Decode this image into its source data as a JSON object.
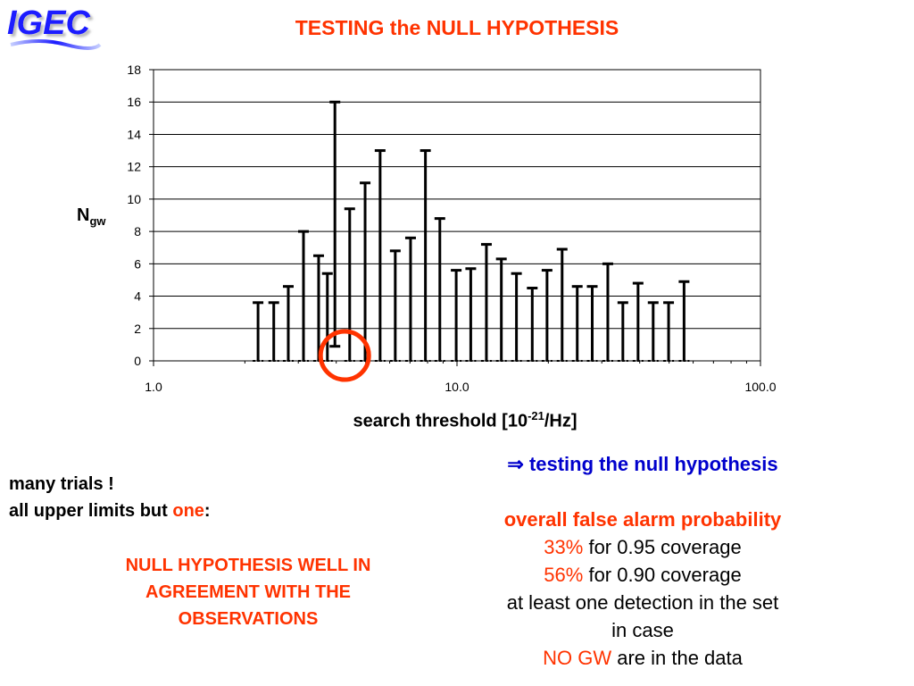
{
  "logo": {
    "text": "IGEC",
    "color": "#1a1aff"
  },
  "title": "TESTING the NULL HYPOTHESIS",
  "chart_data": {
    "type": "bar",
    "subtype": "error-bar / upper-limit intervals",
    "title": "",
    "ylabel_main": "N",
    "ylabel_sub": "gw",
    "xlabel_pre": "search threshold [10",
    "xlabel_sup": "-21",
    "xlabel_post": "/Hz]",
    "xscale": "log",
    "xlim": [
      1.0,
      100.0
    ],
    "ylim": [
      0,
      18
    ],
    "xticks": [
      "1.0",
      "10.0",
      "100.0"
    ],
    "yticks": [
      "0",
      "2",
      "4",
      "6",
      "8",
      "10",
      "12",
      "14",
      "16",
      "18"
    ],
    "grid": "horizontal",
    "legend": "none",
    "x": [
      2.21,
      2.49,
      2.78,
      3.12,
      3.5,
      3.74,
      3.96,
      4.43,
      4.98,
      5.58,
      6.26,
      7.03,
      7.87,
      8.78,
      9.94,
      11.1,
      12.5,
      14.0,
      15.7,
      17.7,
      19.8,
      22.2,
      24.9,
      27.9,
      31.4,
      35.2,
      39.5,
      44.3,
      49.8,
      56.0
    ],
    "upper": [
      3.6,
      3.6,
      4.6,
      8.0,
      6.5,
      5.4,
      16.0,
      9.4,
      11.0,
      13.0,
      6.8,
      7.6,
      13.0,
      8.8,
      5.6,
      5.7,
      7.2,
      6.3,
      5.4,
      4.5,
      5.6,
      6.9,
      4.6,
      4.6,
      6.0,
      3.6,
      4.8,
      3.6,
      3.6,
      4.9
    ],
    "lower": [
      0,
      0,
      0,
      0,
      0,
      0,
      0.9,
      0,
      0,
      0,
      0,
      0,
      0,
      0,
      0,
      0,
      0,
      0,
      0,
      0,
      0,
      0,
      0,
      0,
      0,
      0,
      0,
      0,
      0,
      0
    ],
    "highlight": {
      "x": 3.96,
      "color": "#ff3300",
      "shape": "circle"
    }
  },
  "left_notes": {
    "line1": "many trials !",
    "line2_pre": "all upper limits but ",
    "line2_red": "one",
    "line2_post": ":"
  },
  "conclusion": "NULL HYPOTHESIS WELL IN AGREEMENT WITH THE OBSERVATIONS",
  "right_notes": {
    "arrow": "⇒",
    "heading": "testing the null hypothesis",
    "subheading": "overall false alarm probability",
    "row1_pct": "33%",
    "row1_text": " for 0.95 coverage",
    "row2_pct": "56%",
    "row2_text": " for 0.90 coverage",
    "line3": "at least one detection in the set",
    "line4": "in case",
    "line5_red": "NO GW",
    "line5_text": " are in the data"
  }
}
